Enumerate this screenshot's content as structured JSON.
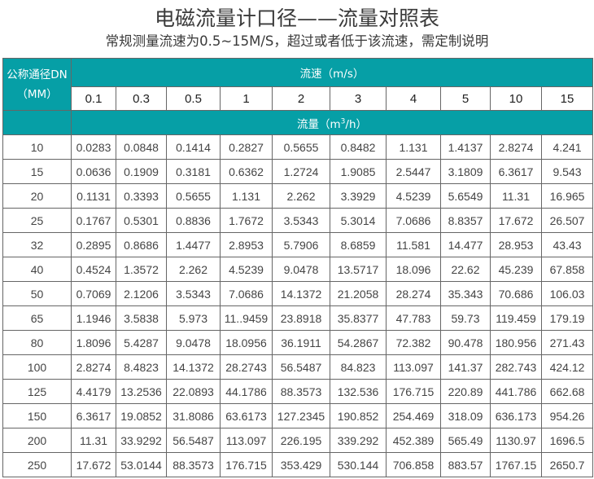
{
  "title": "电磁流量计口径——流量对照表",
  "subtitle": "常规测量流速为0.5~15M/S，超过或者低于该流速，需定制说明",
  "colors": {
    "header_bg": "#069fa6",
    "header_text": "#ffffff",
    "border": "#666666"
  },
  "table": {
    "dn_header_line1": "公称通径DN",
    "dn_header_line2": "（MM）",
    "speed_header": "流速（m/s）",
    "flow_header_prefix": "流量（m",
    "flow_header_sup": "3",
    "flow_header_suffix": "/h）",
    "speeds": [
      "0.1",
      "0.3",
      "0.5",
      "1",
      "2",
      "3",
      "4",
      "5",
      "10",
      "15"
    ],
    "rows": [
      {
        "dn": "10",
        "values": [
          "0.0283",
          "0.0848",
          "0.1414",
          "0.2827",
          "0.5655",
          "0.8482",
          "1.131",
          "1.4137",
          "2.8274",
          "4.241"
        ]
      },
      {
        "dn": "15",
        "values": [
          "0.0636",
          "0.1909",
          "0.3181",
          "0.6362",
          "1.2724",
          "1.9085",
          "2.5447",
          "3.1809",
          "6.3617",
          "9.543"
        ]
      },
      {
        "dn": "20",
        "values": [
          "0.1131",
          "0.3393",
          "0.5655",
          "1.131",
          "2.262",
          "3.3929",
          "4.5239",
          "5.6549",
          "11.31",
          "16.965"
        ]
      },
      {
        "dn": "25",
        "values": [
          "0.1767",
          "0.5301",
          "0.8836",
          "1.7672",
          "3.5343",
          "5.3014",
          "7.0686",
          "8.8357",
          "17.672",
          "26.507"
        ]
      },
      {
        "dn": "32",
        "values": [
          "0.2895",
          "0.8686",
          "1.4477",
          "2.8953",
          "5.7906",
          "8.6859",
          "11.581",
          "14.477",
          "28.953",
          "43.43"
        ]
      },
      {
        "dn": "40",
        "values": [
          "0.4524",
          "1.3572",
          "2.262",
          "4.5239",
          "9.0478",
          "13.5717",
          "18.096",
          "22.62",
          "45.239",
          "67.858"
        ]
      },
      {
        "dn": "50",
        "values": [
          "0.7069",
          "2.1206",
          "3.5343",
          "7.0686",
          "14.1372",
          "21.2058",
          "28.274",
          "35.343",
          "70.686",
          "106.03"
        ]
      },
      {
        "dn": "65",
        "values": [
          "1.1946",
          "3.5838",
          "5.973",
          "11..9459",
          "23.8918",
          "35.8377",
          "47.783",
          "59.73",
          "119.459",
          "179.19"
        ]
      },
      {
        "dn": "80",
        "values": [
          "1.8096",
          "5.4287",
          "9.0478",
          "18.0956",
          "36.1911",
          "54.2867",
          "72.382",
          "90.478",
          "180.956",
          "271.43"
        ]
      },
      {
        "dn": "100",
        "values": [
          "2.8274",
          "8.4823",
          "14.1372",
          "28.2743",
          "56.5487",
          "84.823",
          "113.097",
          "141.37",
          "282.743",
          "424.12"
        ]
      },
      {
        "dn": "125",
        "values": [
          "4.4179",
          "13.2536",
          "22.0893",
          "44.1786",
          "88.3573",
          "132.536",
          "176.715",
          "220.89",
          "441.786",
          "662.68"
        ]
      },
      {
        "dn": "150",
        "values": [
          "6.3617",
          "19.0852",
          "31.8086",
          "63.6173",
          "127.2345",
          "190.852",
          "254.469",
          "318.09",
          "636.173",
          "954.26"
        ]
      },
      {
        "dn": "200",
        "values": [
          "11.31",
          "33.9292",
          "56.5487",
          "113.097",
          "226.195",
          "339.292",
          "452.389",
          "565.49",
          "1130.97",
          "1696.5"
        ]
      },
      {
        "dn": "250",
        "values": [
          "17.672",
          "53.0144",
          "88.3573",
          "176.715",
          "353.429",
          "530.144",
          "706.858",
          "883.57",
          "1767.15",
          "2650.7"
        ]
      }
    ]
  }
}
